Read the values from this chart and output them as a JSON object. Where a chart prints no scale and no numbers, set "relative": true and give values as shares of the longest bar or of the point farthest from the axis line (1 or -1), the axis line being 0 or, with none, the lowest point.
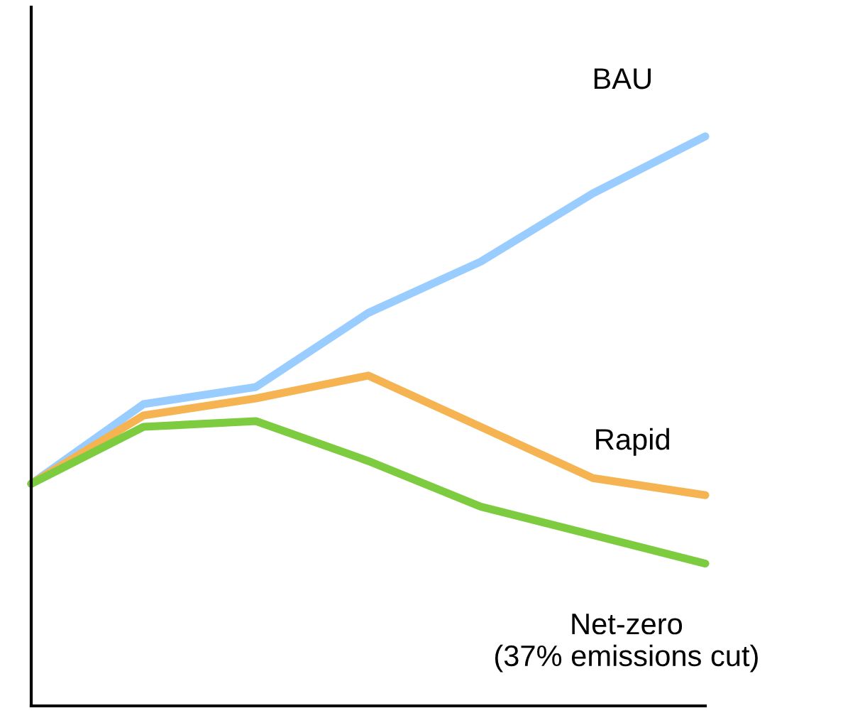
{
  "chart_data": {
    "type": "line",
    "relative": true,
    "categories": [
      null,
      null,
      null,
      null,
      null,
      null,
      null
    ],
    "series": [
      {
        "name": "BAU",
        "color": "#99ccff",
        "values": [
          0.39,
          0.53,
          0.56,
          0.69,
          0.78,
          0.9,
          1
        ]
      },
      {
        "name": "Rapid",
        "color": "#f5b352",
        "values": [
          0.39,
          0.51,
          0.54,
          0.58,
          0.49,
          0.4,
          0.37
        ]
      },
      {
        "name": "Net-zero\n(37% emissions cut)",
        "color": "#7dcc3f",
        "values": [
          0.39,
          0.49,
          0.5,
          0.43,
          0.35,
          0.3,
          0.25
        ]
      }
    ],
    "legend": false,
    "marker": "none",
    "line_style": "solid"
  }
}
